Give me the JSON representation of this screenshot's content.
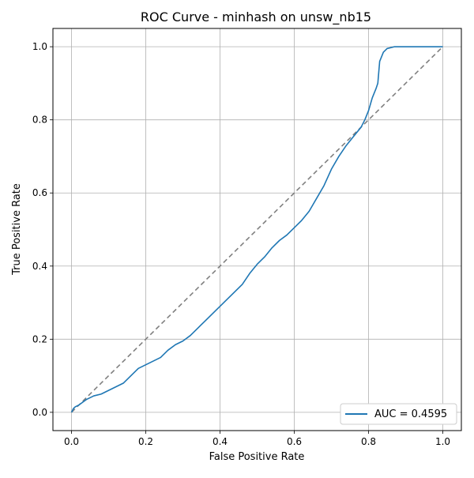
{
  "chart_data": {
    "type": "line",
    "title": "ROC Curve - minhash on unsw_nb15",
    "xlabel": "False Positive Rate",
    "ylabel": "True Positive Rate",
    "xlim": [
      -0.05,
      1.05
    ],
    "ylim": [
      -0.05,
      1.05
    ],
    "grid": true,
    "legend_position": "lower-right",
    "x_ticks": [
      "0.0",
      "0.2",
      "0.4",
      "0.6",
      "0.8",
      "1.0"
    ],
    "y_ticks": [
      "0.0",
      "0.2",
      "0.4",
      "0.6",
      "0.8",
      "1.0"
    ],
    "series": [
      {
        "name": "AUC = 0.4595",
        "color": "#1f77b4",
        "points": [
          [
            0.0,
            0.0
          ],
          [
            0.005,
            0.01
          ],
          [
            0.01,
            0.015
          ],
          [
            0.02,
            0.02
          ],
          [
            0.04,
            0.035
          ],
          [
            0.06,
            0.045
          ],
          [
            0.08,
            0.05
          ],
          [
            0.1,
            0.06
          ],
          [
            0.12,
            0.07
          ],
          [
            0.14,
            0.08
          ],
          [
            0.16,
            0.1
          ],
          [
            0.18,
            0.12
          ],
          [
            0.2,
            0.13
          ],
          [
            0.22,
            0.14
          ],
          [
            0.24,
            0.15
          ],
          [
            0.26,
            0.17
          ],
          [
            0.28,
            0.185
          ],
          [
            0.3,
            0.195
          ],
          [
            0.32,
            0.21
          ],
          [
            0.34,
            0.23
          ],
          [
            0.36,
            0.25
          ],
          [
            0.38,
            0.27
          ],
          [
            0.4,
            0.29
          ],
          [
            0.42,
            0.31
          ],
          [
            0.44,
            0.33
          ],
          [
            0.46,
            0.35
          ],
          [
            0.48,
            0.38
          ],
          [
            0.5,
            0.405
          ],
          [
            0.52,
            0.425
          ],
          [
            0.54,
            0.45
          ],
          [
            0.56,
            0.47
          ],
          [
            0.58,
            0.485
          ],
          [
            0.6,
            0.505
          ],
          [
            0.62,
            0.525
          ],
          [
            0.64,
            0.55
          ],
          [
            0.66,
            0.585
          ],
          [
            0.68,
            0.62
          ],
          [
            0.7,
            0.665
          ],
          [
            0.72,
            0.7
          ],
          [
            0.74,
            0.73
          ],
          [
            0.76,
            0.755
          ],
          [
            0.78,
            0.78
          ],
          [
            0.79,
            0.8
          ],
          [
            0.8,
            0.825
          ],
          [
            0.81,
            0.86
          ],
          [
            0.82,
            0.885
          ],
          [
            0.825,
            0.9
          ],
          [
            0.83,
            0.96
          ],
          [
            0.84,
            0.985
          ],
          [
            0.85,
            0.995
          ],
          [
            0.87,
            1.0
          ],
          [
            1.0,
            1.0
          ]
        ]
      },
      {
        "name": "chance",
        "color": "#808080",
        "dashed": true,
        "points": [
          [
            0.0,
            0.0
          ],
          [
            1.0,
            1.0
          ]
        ]
      }
    ]
  }
}
